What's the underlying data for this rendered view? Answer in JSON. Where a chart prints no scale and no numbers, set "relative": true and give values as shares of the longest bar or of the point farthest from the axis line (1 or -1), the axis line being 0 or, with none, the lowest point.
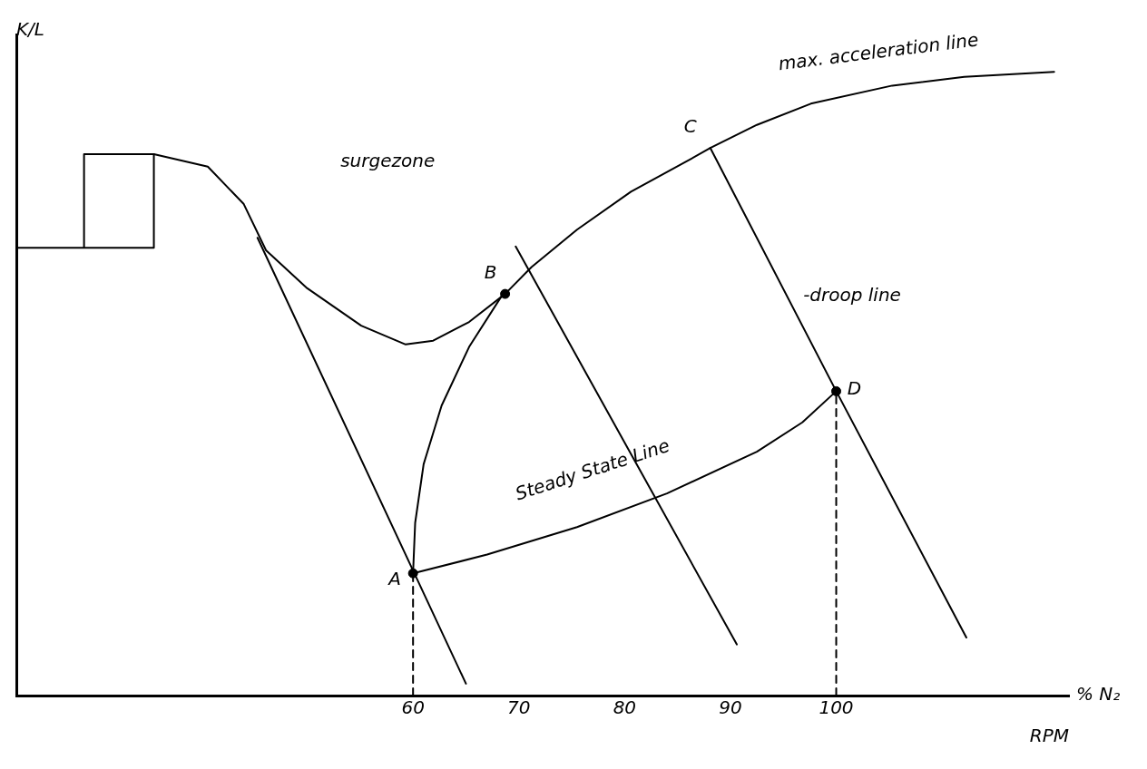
{
  "chart_data": {
    "type": "line",
    "relative": true,
    "ylabel": "K/L",
    "xlabel": "RPM",
    "xlim": [
      22.5,
      122
    ],
    "xticks": [
      60,
      70,
      80,
      90,
      100
    ],
    "grid": false,
    "legend": false,
    "marker": "none",
    "tick_labels": "x",
    "series": [
      {
        "color": "#000000",
        "x": [
          22.6,
          35.5,
          35.5,
          28.9,
          28.9
        ],
        "values": [
          0.718,
          0.718,
          0.868,
          0.868,
          0.718
        ]
      },
      {
        "color": "#000000",
        "x": [
          35.5,
          40.6,
          44.0,
          46.1,
          50.0,
          55.1,
          59.3,
          61.9,
          65.3,
          68.7,
          71.2,
          75.5,
          80.6,
          85.7,
          88.1,
          92.5,
          97.6,
          105.3,
          112.1,
          120.6
        ],
        "values": [
          0.868,
          0.848,
          0.788,
          0.714,
          0.653,
          0.593,
          0.563,
          0.569,
          0.599,
          0.644,
          0.687,
          0.747,
          0.808,
          0.855,
          0.878,
          0.915,
          0.949,
          0.978,
          0.992,
          1.0
        ]
      },
      {
        "color": "#000000",
        "x": [
          60,
          67.0,
          75.5,
          84.0,
          92.5,
          96.8,
          100
        ],
        "values": [
          0.196,
          0.226,
          0.27,
          0.324,
          0.391,
          0.438,
          0.488
        ]
      },
      {
        "color": "#000000",
        "x": [
          60,
          60.2,
          61.0,
          62.7,
          65.3,
          68.5
        ],
        "values": [
          0.196,
          0.277,
          0.371,
          0.465,
          0.559,
          0.644
        ]
      },
      {
        "color": "#000000",
        "x": [
          45.3,
          65.0
        ],
        "values": [
          0.734,
          0.019
        ]
      },
      {
        "color": "#000000",
        "x": [
          69.7,
          90.6
        ],
        "values": [
          0.72,
          0.082
        ]
      },
      {
        "color": "#000000",
        "x": [
          88.1,
          100,
          112.3
        ],
        "values": [
          0.878,
          0.488,
          0.093
        ]
      },
      {
        "color": "#000000",
        "x": [
          60,
          60
        ],
        "values": [
          0,
          0.196
        ],
        "line_style": "dashed"
      },
      {
        "color": "#000000",
        "x": [
          100,
          100
        ],
        "values": [
          0,
          0.488
        ],
        "line_style": "dashed"
      },
      {
        "type": "scatter",
        "marker": "circle",
        "color": "#000000",
        "x": [
          60,
          68.7,
          100
        ],
        "values": [
          0.196,
          0.644,
          0.488
        ]
      }
    ],
    "annotations": [
      "surgezone",
      "max. acceleration line",
      "-droop line",
      "Steady State Line",
      "% N₂",
      {
        "text": "A",
        "x": 60,
        "y": 0.196
      },
      {
        "text": "B",
        "x": 68.7,
        "y": 0.644
      },
      {
        "text": "C",
        "x": 88.1,
        "y": 0.878
      },
      {
        "text": "D",
        "x": 100,
        "y": 0.488
      }
    ]
  }
}
